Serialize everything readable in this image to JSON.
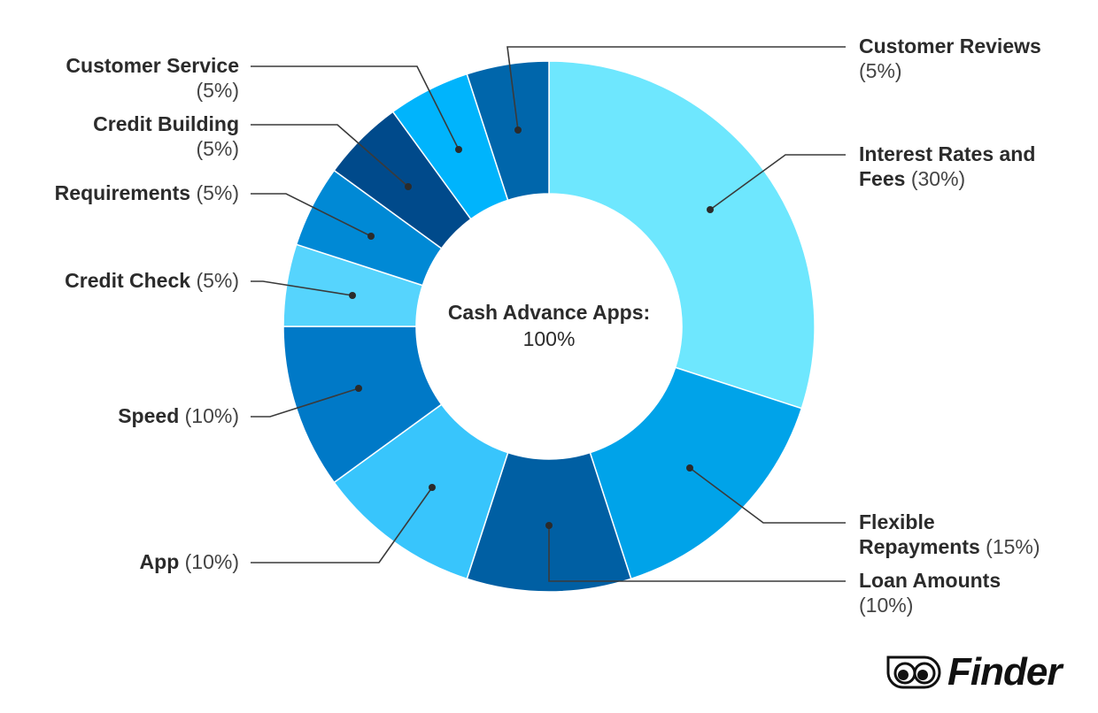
{
  "chart_data": {
    "type": "pie",
    "subtype": "donut",
    "center_label": {
      "title": "Cash Advance Apps:",
      "value": "100%"
    },
    "start": "top",
    "direction": "clockwise",
    "slices": [
      {
        "name": "Interest Rates and Fees",
        "value": 30,
        "color": "#6ee7fe",
        "label": [
          "Interest Rates and",
          "Fees"
        ],
        "pct": "(30%)"
      },
      {
        "name": "Flexible Repayments",
        "value": 15,
        "color": "#00a3e9",
        "label": [
          "Flexible",
          "Repayments"
        ],
        "pct": "(15%)"
      },
      {
        "name": "Loan Amounts",
        "value": 10,
        "color": "#005fa3",
        "label": [
          "Loan Amounts",
          ""
        ],
        "pct": "(10%)"
      },
      {
        "name": "App",
        "value": 10,
        "color": "#38c5fc",
        "label": [
          "App",
          ""
        ],
        "pct": "(10%)"
      },
      {
        "name": "Speed",
        "value": 10,
        "color": "#0079c7",
        "label": [
          "Speed",
          ""
        ],
        "pct": "(10%)"
      },
      {
        "name": "Credit Check",
        "value": 5,
        "color": "#56d4fd",
        "label": [
          "Credit Check",
          ""
        ],
        "pct": "(5%)"
      },
      {
        "name": "Requirements",
        "value": 5,
        "color": "#0089d5",
        "label": [
          "Requirements",
          ""
        ],
        "pct": "(5%)"
      },
      {
        "name": "Credit Building",
        "value": 5,
        "color": "#004a8b",
        "label": [
          "Credit Building",
          ""
        ],
        "pct": "(5%)"
      },
      {
        "name": "Customer Service",
        "value": 5,
        "color": "#00b4fc",
        "label": [
          "Customer Service",
          ""
        ],
        "pct": "(5%)"
      },
      {
        "name": "Customer Reviews",
        "value": 5,
        "color": "#0066ab",
        "label": [
          "Customer Reviews",
          ""
        ],
        "pct": "(5%)"
      }
    ]
  },
  "brand": {
    "name": "Finder"
  }
}
